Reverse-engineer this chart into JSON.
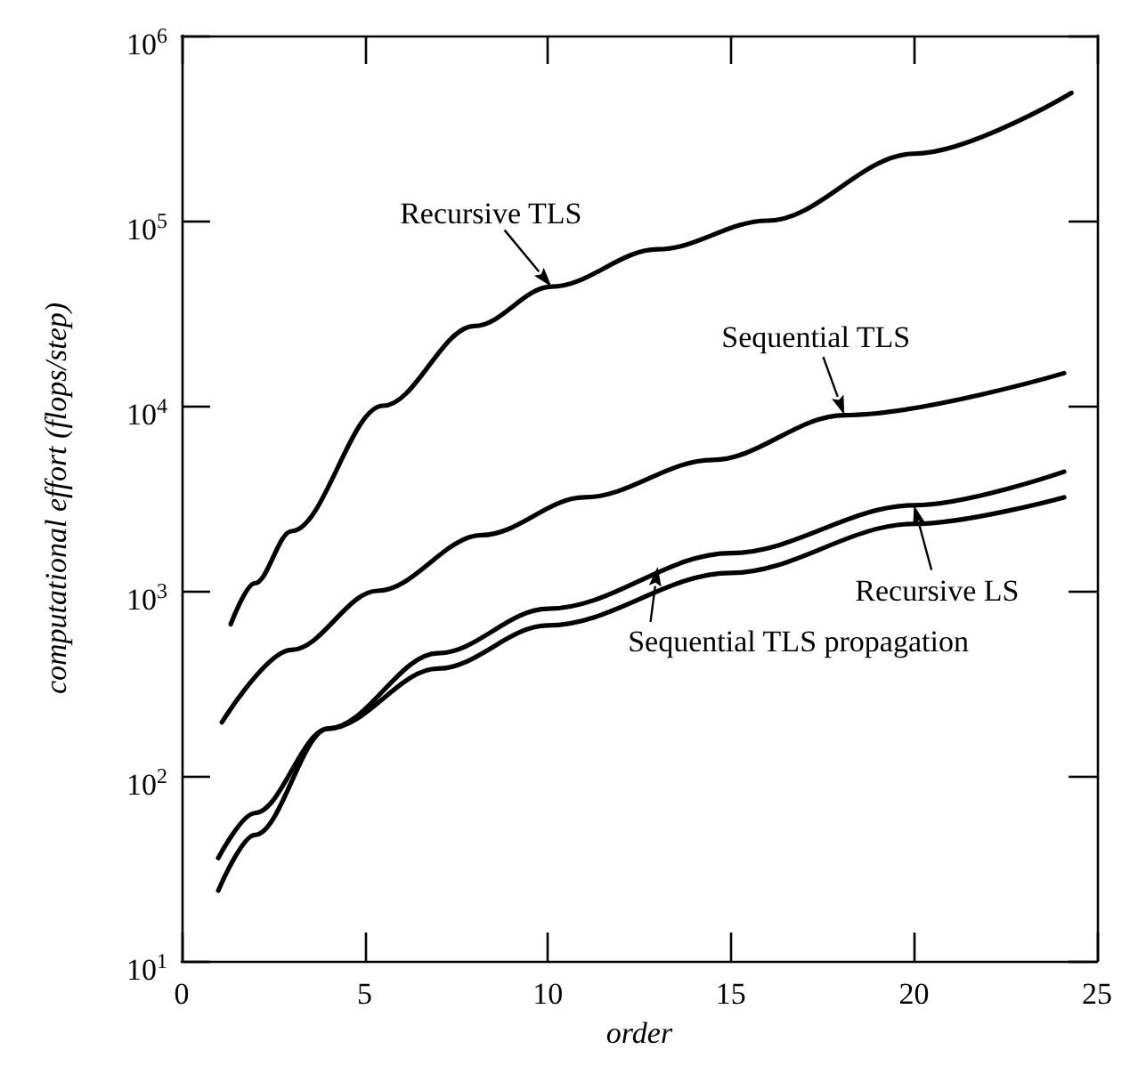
{
  "chart_data": {
    "type": "line",
    "xlabel": "order",
    "ylabel": "computational effort (flops/step)",
    "log": "y",
    "grid": false,
    "xlim": [
      0,
      25
    ],
    "xticks": [
      0,
      5,
      10,
      15,
      20,
      25
    ],
    "ylim": [
      10,
      1000000
    ],
    "yticks": [
      {
        "value": 10,
        "label": "10$^{1}$"
      },
      {
        "value": 100,
        "label": "10$^{2}$"
      },
      {
        "value": 1000,
        "label": "10$^{3}$"
      },
      {
        "value": 10000,
        "label": "10$^{4}$"
      },
      {
        "value": 100000,
        "label": "10$^{5}$"
      },
      {
        "value": 1000000,
        "label": "10$^{6}$"
      }
    ],
    "series": [
      {
        "color": "#000000",
        "x": [
          1.34,
          2,
          3,
          5.5,
          8,
          10.1,
          13,
          16,
          20,
          24.3
        ],
        "values": [
          660,
          1100,
          2100,
          10000,
          27000,
          44000,
          70000,
          100000,
          230000,
          490000
        ]
      },
      {
        "color": "#000000",
        "x": [
          1.1,
          3,
          5.35,
          8.2,
          11,
          14.5,
          18.1,
          24.1
        ],
        "values": [
          195,
          480,
          1000,
          2000,
          3200,
          5100,
          8900,
          15000
        ]
      },
      {
        "color": "#000000",
        "x": [
          1,
          2,
          4,
          7,
          10,
          15,
          20,
          24.1
        ],
        "values": [
          24,
          48,
          180,
          460,
          800,
          1600,
          2900,
          4400
        ]
      },
      {
        "color": "#000000",
        "x": [
          1,
          2,
          4,
          7,
          10,
          15,
          20,
          24.1
        ],
        "values": [
          36,
          63,
          180,
          380,
          650,
          1250,
          2300,
          3200
        ]
      }
    ],
    "annotations": [
      {
        "text": "Recursive TLS",
        "x": 10.1,
        "y": 44000
      },
      {
        "text": "Sequential TLS",
        "x": 18.1,
        "y": 8900
      },
      {
        "text": "Recursive LS",
        "x": 20,
        "y": 2900
      },
      {
        "text": "Sequential TLS propagation",
        "x": 13,
        "y": 1350
      }
    ]
  }
}
